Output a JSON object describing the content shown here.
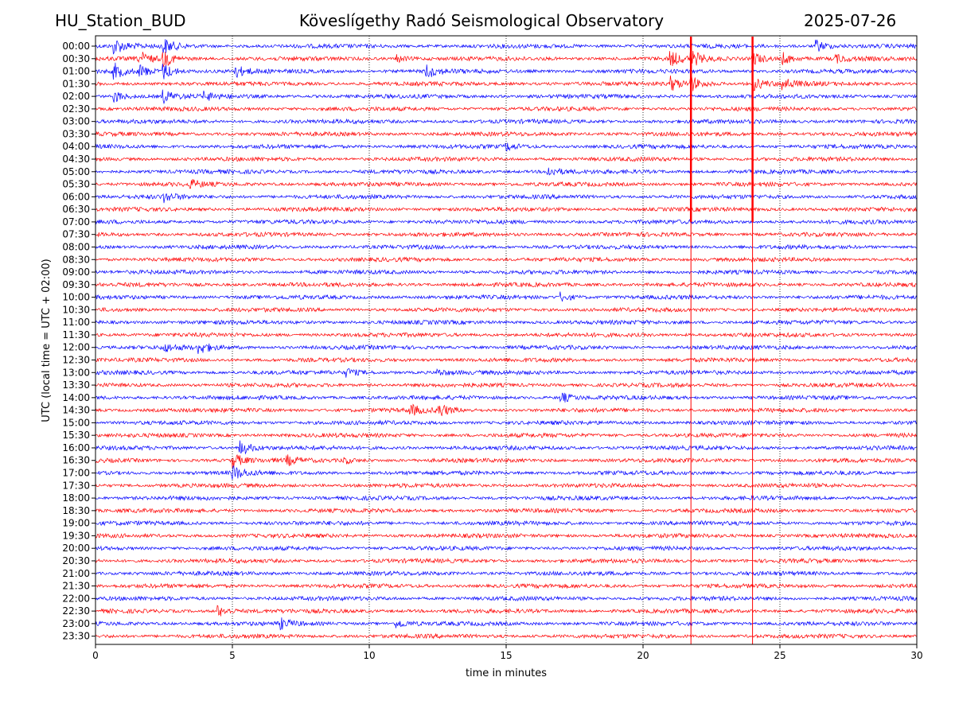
{
  "header": {
    "station": "HU_Station_BUD",
    "observatory": "Köveslígethy Radó Seismological Observatory",
    "date": "2025-07-26"
  },
  "chart_data": {
    "type": "line",
    "title": "Köveslígethy Radó Seismological Observatory",
    "xlabel": "time in minutes",
    "ylabel": "UTC (local time = UTC + 02:00)",
    "xlim": [
      0,
      30
    ],
    "xticks": [
      0,
      5,
      10,
      15,
      20,
      25,
      30
    ],
    "grid": "vertical dotted",
    "colors": [
      "#0000ff",
      "#ff0000"
    ],
    "rows": [
      "00:00",
      "00:30",
      "01:00",
      "01:30",
      "02:00",
      "02:30",
      "03:00",
      "03:30",
      "04:00",
      "04:30",
      "05:00",
      "05:30",
      "06:00",
      "06:30",
      "07:00",
      "07:30",
      "08:00",
      "08:30",
      "09:00",
      "09:30",
      "10:00",
      "10:30",
      "11:00",
      "11:30",
      "12:00",
      "12:30",
      "13:00",
      "13:30",
      "14:00",
      "14:30",
      "15:00",
      "15:30",
      "16:00",
      "16:30",
      "17:00",
      "17:30",
      "18:00",
      "18:30",
      "19:00",
      "19:30",
      "20:00",
      "20:30",
      "21:00",
      "21:30",
      "22:00",
      "22:30",
      "23:00",
      "23:30"
    ],
    "events": [
      {
        "row": "00:00",
        "t": 0.7,
        "amp": 1.0
      },
      {
        "row": "00:00",
        "t": 2.5,
        "amp": 1.0
      },
      {
        "row": "00:00",
        "t": 26.3,
        "amp": 0.9
      },
      {
        "row": "00:30",
        "t": 1.6,
        "amp": 1.0
      },
      {
        "row": "00:30",
        "t": 2.5,
        "amp": 1.0
      },
      {
        "row": "00:30",
        "t": 11.0,
        "amp": 0.5
      },
      {
        "row": "00:30",
        "t": 21.0,
        "amp": 1.0
      },
      {
        "row": "00:30",
        "t": 21.75,
        "amp": 1.0
      },
      {
        "row": "00:30",
        "t": 24.0,
        "amp": 1.0
      },
      {
        "row": "00:30",
        "t": 25.1,
        "amp": 0.8
      },
      {
        "row": "00:30",
        "t": 27.0,
        "amp": 0.6
      },
      {
        "row": "01:00",
        "t": 0.7,
        "amp": 1.0
      },
      {
        "row": "01:00",
        "t": 1.6,
        "amp": 0.9
      },
      {
        "row": "01:00",
        "t": 2.5,
        "amp": 1.0
      },
      {
        "row": "01:00",
        "t": 5.1,
        "amp": 0.8
      },
      {
        "row": "01:00",
        "t": 12.1,
        "amp": 0.9
      },
      {
        "row": "01:30",
        "t": 21.0,
        "amp": 1.0
      },
      {
        "row": "01:30",
        "t": 21.75,
        "amp": 1.0
      },
      {
        "row": "01:30",
        "t": 24.0,
        "amp": 1.0
      },
      {
        "row": "01:30",
        "t": 25.1,
        "amp": 0.8
      },
      {
        "row": "02:00",
        "t": 0.7,
        "amp": 0.8
      },
      {
        "row": "02:00",
        "t": 2.5,
        "amp": 0.8
      },
      {
        "row": "02:00",
        "t": 4.0,
        "amp": 0.5
      },
      {
        "row": "04:00",
        "t": 15.0,
        "amp": 0.5
      },
      {
        "row": "05:00",
        "t": 16.5,
        "amp": 0.7
      },
      {
        "row": "05:30",
        "t": 3.5,
        "amp": 0.5
      },
      {
        "row": "06:00",
        "t": 2.5,
        "amp": 0.6
      },
      {
        "row": "10:00",
        "t": 17.0,
        "amp": 0.6
      },
      {
        "row": "12:00",
        "t": 2.5,
        "amp": 0.5
      },
      {
        "row": "12:00",
        "t": 3.8,
        "amp": 0.8
      },
      {
        "row": "13:00",
        "t": 9.2,
        "amp": 0.5
      },
      {
        "row": "13:00",
        "t": 12.5,
        "amp": 0.4
      },
      {
        "row": "14:00",
        "t": 17.0,
        "amp": 0.7
      },
      {
        "row": "14:30",
        "t": 11.5,
        "amp": 0.7
      },
      {
        "row": "14:30",
        "t": 12.5,
        "amp": 1.0
      },
      {
        "row": "16:00",
        "t": 5.3,
        "amp": 1.0
      },
      {
        "row": "16:30",
        "t": 5.0,
        "amp": 1.0
      },
      {
        "row": "16:30",
        "t": 7.0,
        "amp": 0.6
      },
      {
        "row": "16:30",
        "t": 9.0,
        "amp": 0.5
      },
      {
        "row": "17:00",
        "t": 5.0,
        "amp": 1.0
      },
      {
        "row": "22:30",
        "t": 4.5,
        "amp": 0.7
      },
      {
        "row": "23:00",
        "t": 6.8,
        "amp": 0.6
      },
      {
        "row": "23:00",
        "t": 11.0,
        "amp": 0.6
      }
    ],
    "vertical_events": [
      {
        "t": 21.75,
        "from": "00:00",
        "to": "07:00"
      },
      {
        "t": 24.0,
        "from": "00:00",
        "to": "07:00"
      }
    ]
  }
}
